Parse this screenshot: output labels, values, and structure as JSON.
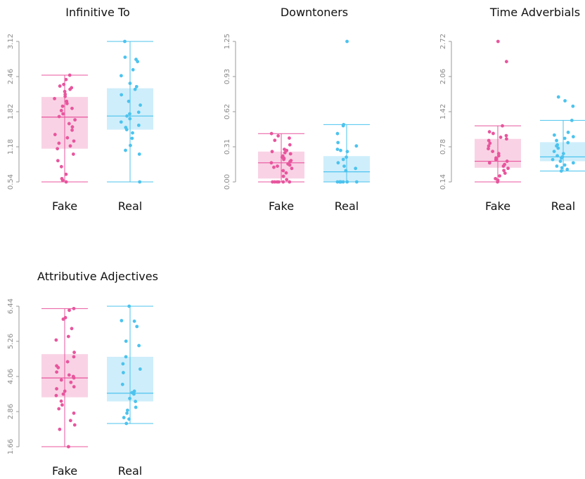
{
  "colors": {
    "fake": "#e8559d",
    "fake_fill": "#f9d3e5",
    "real": "#4cc3ee",
    "real_fill": "#cfeefb",
    "axis": "#9a9a9a"
  },
  "chart_data": [
    {
      "type": "box",
      "title": "Infinitive To",
      "categories": [
        "Fake",
        "Real"
      ],
      "yticks": [
        "0.54",
        "1.18",
        "1.82",
        "2.46",
        "3.12"
      ],
      "ylim": [
        0.54,
        3.12
      ],
      "series": [
        {
          "name": "Fake",
          "min": 0.54,
          "q1": 1.15,
          "median": 1.73,
          "q3": 2.1,
          "max": 2.5,
          "points": [
            2.5,
            2.42,
            2.33,
            2.3,
            2.27,
            2.24,
            2.2,
            2.15,
            2.11,
            2.07,
            2.02,
            1.98,
            1.93,
            1.89,
            1.85,
            1.79,
            1.74,
            1.68,
            1.61,
            1.55,
            1.49,
            1.41,
            1.35,
            1.29,
            1.25,
            1.2,
            1.15,
            1.05,
            0.93,
            0.82,
            0.68,
            0.6,
            0.57,
            0.54
          ]
        },
        {
          "name": "Real",
          "min": 0.54,
          "q1": 1.5,
          "median": 1.75,
          "q3": 2.26,
          "max": 3.12,
          "points": [
            3.12,
            2.83,
            2.79,
            2.75,
            2.6,
            2.49,
            2.35,
            2.29,
            2.24,
            2.14,
            2.02,
            1.95,
            1.82,
            1.79,
            1.75,
            1.7,
            1.64,
            1.58,
            1.54,
            1.5,
            1.44,
            1.34,
            1.21,
            1.12,
            1.05,
            0.54
          ]
        }
      ]
    },
    {
      "type": "box",
      "title": "Downtoners",
      "categories": [
        "Fake",
        "Real"
      ],
      "yticks": [
        "0.00",
        "0.31",
        "0.62",
        "0.93",
        "1.25"
      ],
      "ylim": [
        0.0,
        1.25
      ],
      "series": [
        {
          "name": "Fake",
          "min": 0.0,
          "q1": 0.03,
          "median": 0.17,
          "q3": 0.27,
          "max": 0.43,
          "points": [
            0.43,
            0.41,
            0.39,
            0.37,
            0.33,
            0.29,
            0.28,
            0.27,
            0.26,
            0.25,
            0.23,
            0.22,
            0.21,
            0.2,
            0.19,
            0.18,
            0.17,
            0.16,
            0.15,
            0.14,
            0.13,
            0.12,
            0.1,
            0.08,
            0.05,
            0.02,
            0.0,
            0.0,
            0.0,
            0.0,
            0.0,
            0.0
          ]
        },
        {
          "name": "Real",
          "min": 0.0,
          "q1": 0.0,
          "median": 0.09,
          "q3": 0.23,
          "max": 0.51,
          "points": [
            1.25,
            0.51,
            0.5,
            0.43,
            0.35,
            0.32,
            0.29,
            0.28,
            0.27,
            0.22,
            0.2,
            0.17,
            0.14,
            0.12,
            0.1,
            0.0,
            0.0,
            0.0,
            0.0,
            0.0,
            0.0,
            0.0
          ]
        }
      ]
    },
    {
      "type": "box",
      "title": "Time Adverbials",
      "categories": [
        "Fake",
        "Real"
      ],
      "yticks": [
        "0.14",
        "0.78",
        "1.42",
        "2.06",
        "2.72"
      ],
      "ylim": [
        0.14,
        2.72
      ],
      "series": [
        {
          "name": "Fake",
          "min": 0.14,
          "q1": 0.4,
          "median": 0.52,
          "q3": 0.93,
          "max": 1.17,
          "points": [
            2.72,
            2.35,
            1.17,
            1.06,
            1.03,
            0.99,
            0.96,
            0.93,
            0.9,
            0.85,
            0.8,
            0.75,
            0.7,
            0.66,
            0.62,
            0.58,
            0.55,
            0.52,
            0.49,
            0.46,
            0.43,
            0.39,
            0.35,
            0.3,
            0.25,
            0.2,
            0.17,
            0.14
          ]
        },
        {
          "name": "Real",
          "min": 0.34,
          "q1": 0.52,
          "median": 0.6,
          "q3": 0.87,
          "max": 1.27,
          "points": [
            1.7,
            1.63,
            1.53,
            1.27,
            1.05,
            1.0,
            0.97,
            0.94,
            0.9,
            0.86,
            0.82,
            0.8,
            0.76,
            0.7,
            0.66,
            0.62,
            0.6,
            0.58,
            0.55,
            0.52,
            0.49,
            0.45,
            0.43,
            0.4,
            0.37,
            0.34
          ]
        }
      ]
    },
    {
      "type": "box",
      "title": "Attributive Adjectives",
      "categories": [
        "Fake",
        "Real"
      ],
      "yticks": [
        "1.66",
        "2.86",
        "4.06",
        "5.26",
        "6.44"
      ],
      "ylim": [
        1.66,
        6.44
      ],
      "series": [
        {
          "name": "Fake",
          "min": 1.66,
          "q1": 3.34,
          "median": 4.0,
          "q3": 4.81,
          "max": 6.36,
          "points": [
            6.36,
            6.3,
            6.05,
            6.0,
            5.68,
            5.41,
            5.29,
            4.87,
            4.72,
            4.55,
            4.41,
            4.35,
            4.2,
            4.1,
            4.05,
            4.0,
            3.93,
            3.85,
            3.7,
            3.63,
            3.55,
            3.45,
            3.4,
            3.21,
            3.08,
            2.95,
            2.8,
            2.55,
            2.4,
            2.25,
            1.66
          ]
        },
        {
          "name": "Real",
          "min": 2.45,
          "q1": 3.2,
          "median": 3.48,
          "q3": 4.72,
          "max": 6.44,
          "points": [
            6.44,
            5.95,
            5.93,
            5.75,
            5.25,
            5.1,
            4.72,
            4.48,
            4.3,
            4.18,
            3.78,
            3.55,
            3.5,
            3.45,
            3.3,
            3.2,
            3.0,
            2.9,
            2.8,
            2.65,
            2.6,
            2.45
          ]
        }
      ]
    }
  ]
}
